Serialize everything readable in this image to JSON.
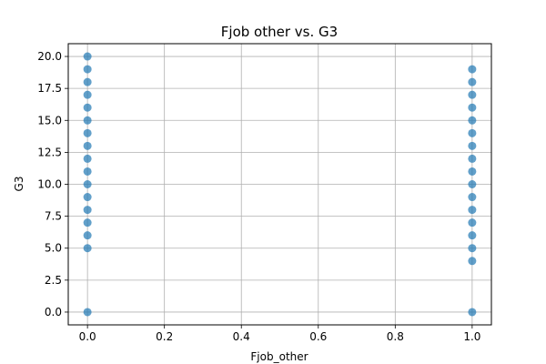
{
  "chart_data": {
    "type": "scatter",
    "title": "Fjob other vs. G3",
    "xlabel": "Fjob_other",
    "ylabel": "G3",
    "xlim": [
      -0.05,
      1.05
    ],
    "ylim": [
      -1.0,
      21.0
    ],
    "xticks": [
      0.0,
      0.2,
      0.4,
      0.6,
      0.8,
      1.0
    ],
    "xtick_labels": [
      "0.0",
      "0.2",
      "0.4",
      "0.6",
      "0.8",
      "1.0"
    ],
    "yticks": [
      0.0,
      2.5,
      5.0,
      7.5,
      10.0,
      12.5,
      15.0,
      17.5,
      20.0
    ],
    "ytick_labels": [
      "0.0",
      "2.5",
      "5.0",
      "7.5",
      "10.0",
      "12.5",
      "15.0",
      "17.5",
      "20.0"
    ],
    "grid": true,
    "point_color": "#1f77b4",
    "point_alpha": 0.7,
    "points": [
      {
        "x": 0,
        "y": 0
      },
      {
        "x": 0,
        "y": 5
      },
      {
        "x": 0,
        "y": 6
      },
      {
        "x": 0,
        "y": 7
      },
      {
        "x": 0,
        "y": 8
      },
      {
        "x": 0,
        "y": 9
      },
      {
        "x": 0,
        "y": 10
      },
      {
        "x": 0,
        "y": 11
      },
      {
        "x": 0,
        "y": 12
      },
      {
        "x": 0,
        "y": 13
      },
      {
        "x": 0,
        "y": 14
      },
      {
        "x": 0,
        "y": 15
      },
      {
        "x": 0,
        "y": 16
      },
      {
        "x": 0,
        "y": 17
      },
      {
        "x": 0,
        "y": 18
      },
      {
        "x": 0,
        "y": 19
      },
      {
        "x": 0,
        "y": 20
      },
      {
        "x": 1,
        "y": 0
      },
      {
        "x": 1,
        "y": 4
      },
      {
        "x": 1,
        "y": 5
      },
      {
        "x": 1,
        "y": 6
      },
      {
        "x": 1,
        "y": 7
      },
      {
        "x": 1,
        "y": 8
      },
      {
        "x": 1,
        "y": 9
      },
      {
        "x": 1,
        "y": 10
      },
      {
        "x": 1,
        "y": 11
      },
      {
        "x": 1,
        "y": 12
      },
      {
        "x": 1,
        "y": 13
      },
      {
        "x": 1,
        "y": 14
      },
      {
        "x": 1,
        "y": 15
      },
      {
        "x": 1,
        "y": 16
      },
      {
        "x": 1,
        "y": 17
      },
      {
        "x": 1,
        "y": 18
      },
      {
        "x": 1,
        "y": 19
      }
    ]
  }
}
